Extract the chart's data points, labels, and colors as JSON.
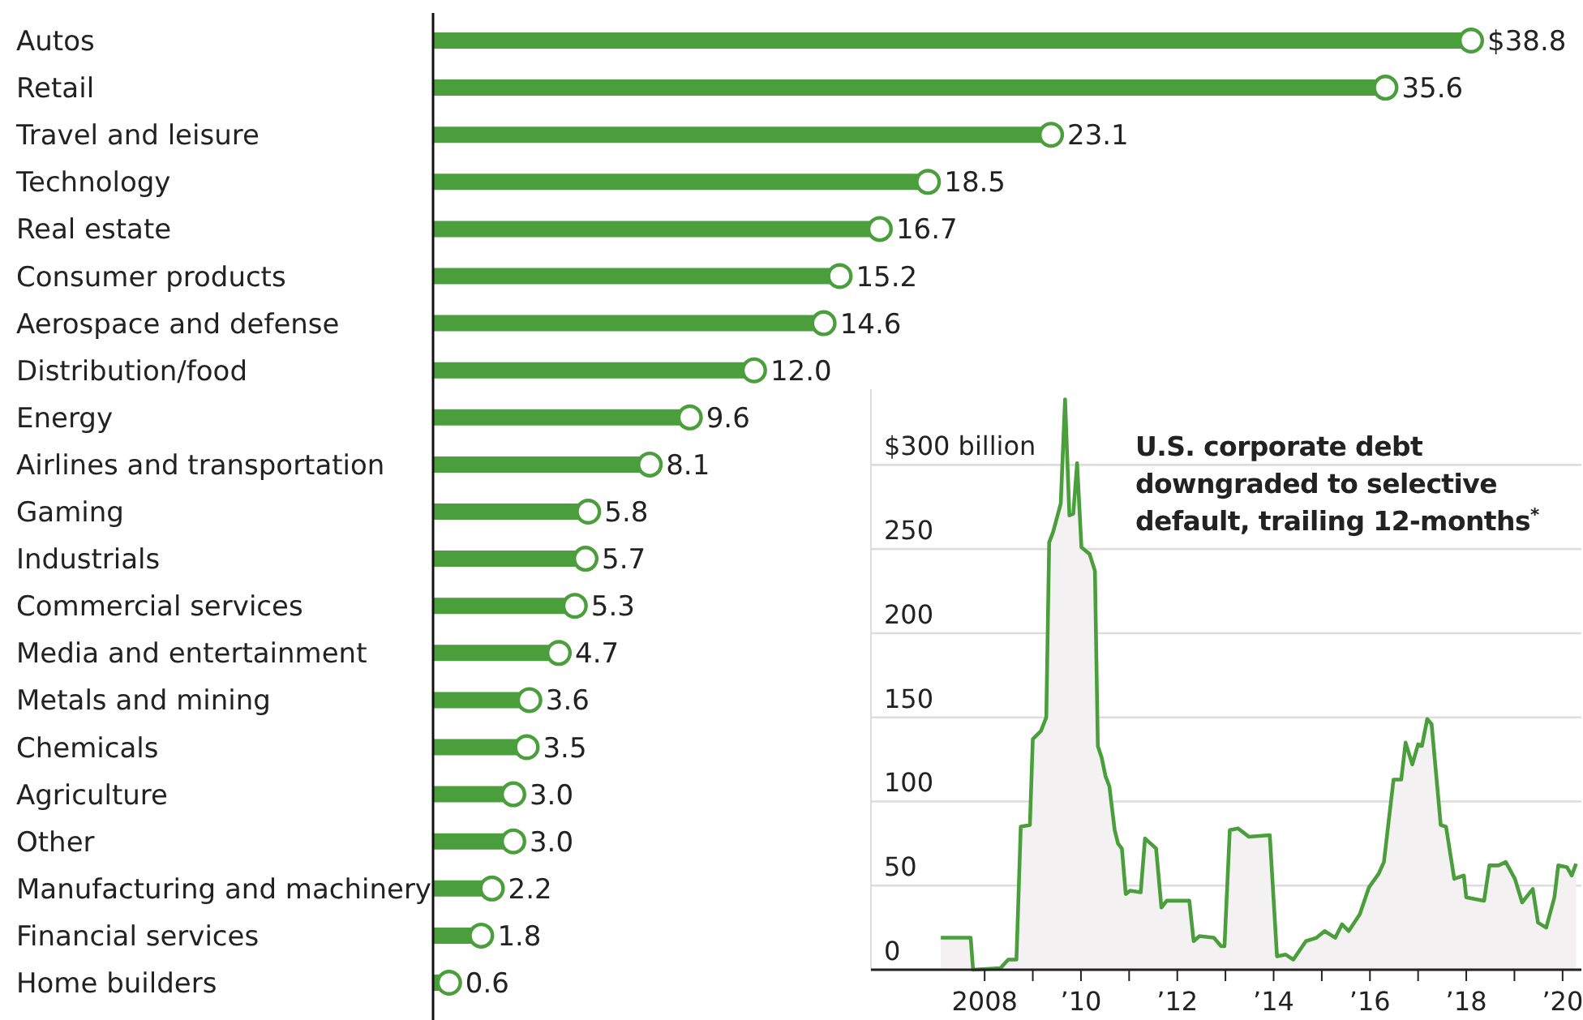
{
  "chart_data": [
    {
      "type": "lollipop",
      "orientation": "horizontal",
      "marker": "circle",
      "color": "#4a9e3c",
      "categories": [
        "Autos",
        "Retail",
        "Travel and leisure",
        "Technology",
        "Real estate",
        "Consumer products",
        "Aerospace and defense",
        "Distribution/food",
        "Energy",
        "Airlines and transportation",
        "Gaming",
        "Industrials",
        "Commercial services",
        "Media and entertainment",
        "Metals and mining",
        "Chemicals",
        "Agriculture",
        "Other",
        "Manufacturing and machinery",
        "Financial services",
        "Home builders"
      ],
      "values": [
        38.8,
        35.6,
        23.1,
        18.5,
        16.7,
        15.2,
        14.6,
        12.0,
        9.6,
        8.1,
        5.8,
        5.7,
        5.3,
        4.7,
        3.6,
        3.5,
        3.0,
        3.0,
        2.2,
        1.8,
        0.6
      ],
      "value_labels": [
        "$38.8",
        "35.6",
        "23.1",
        "18.5",
        "16.7",
        "15.2",
        "14.6",
        "12.0",
        "9.6",
        "8.1",
        "5.8",
        "5.7",
        "5.3",
        "4.7",
        "3.6",
        "3.5",
        "3.0",
        "3.0",
        "2.2",
        "1.8",
        "0.6"
      ]
    },
    {
      "type": "area",
      "title": "U.S. corporate debt downgraded to selective default, trailing 12-months$^{*}$",
      "grid": "y",
      "xlim": [
        2005.64,
        2020.39
      ],
      "ylim": [
        0,
        345
      ],
      "xticks": [
        2008,
        {
          "value": 2009,
          "label": null
        },
        {
          "value": 2010,
          "label": "’10"
        },
        {
          "value": 2011,
          "label": null
        },
        {
          "value": 2012,
          "label": "’12"
        },
        {
          "value": 2013,
          "label": null
        },
        {
          "value": 2014,
          "label": "’14"
        },
        {
          "value": 2015,
          "label": null
        },
        {
          "value": 2016,
          "label": "’16"
        },
        {
          "value": 2017,
          "label": null
        },
        {
          "value": 2018,
          "label": "’18"
        },
        {
          "value": 2019,
          "label": null
        },
        {
          "value": 2020,
          "label": "’20"
        }
      ],
      "yticks": [
        0,
        50,
        100,
        150,
        200,
        250,
        {
          "value": 300,
          "label": "$300 billion"
        }
      ],
      "series": [
        {
          "color": "#4a9e3c",
          "x": [
            2007.09,
            2007.71,
            2007.76,
            2008.33,
            2008.49,
            2008.66,
            2008.75,
            2008.94,
            2009.0,
            2009.17,
            2009.28,
            2009.34,
            2009.42,
            2009.58,
            2009.67,
            2009.76,
            2009.84,
            2009.92,
            2010.01,
            2010.18,
            2010.29,
            2010.35,
            2010.43,
            2010.51,
            2010.59,
            2010.7,
            2010.77,
            2010.85,
            2010.93,
            2011.02,
            2011.24,
            2011.33,
            2011.56,
            2011.67,
            2011.78,
            2012.25,
            2012.34,
            2012.46,
            2012.76,
            2012.91,
            2012.98,
            2013.09,
            2013.26,
            2013.49,
            2013.92,
            2014.07,
            2014.25,
            2014.41,
            2014.67,
            2014.89,
            2015.06,
            2015.28,
            2015.42,
            2015.56,
            2015.79,
            2015.98,
            2016.18,
            2016.29,
            2016.49,
            2016.65,
            2016.74,
            2016.88,
            2017.0,
            2017.08,
            2017.19,
            2017.28,
            2017.47,
            2017.58,
            2017.75,
            2017.95,
            2018.0,
            2018.37,
            2018.48,
            2018.67,
            2018.82,
            2019.01,
            2019.16,
            2019.38,
            2019.49,
            2019.66,
            2019.83,
            2019.91,
            2020.09,
            2020.19,
            2020.28
          ],
          "values": [
            19,
            19,
            0,
            1,
            6,
            6,
            85,
            86,
            137,
            142,
            150,
            254,
            260,
            277,
            339,
            270,
            271,
            301,
            251,
            247,
            237,
            133,
            126,
            115,
            109,
            83,
            75,
            72,
            45,
            47,
            46,
            78,
            72,
            37,
            41,
            41,
            17,
            20,
            19,
            14,
            14,
            83,
            84,
            79,
            80,
            8,
            9,
            6,
            17,
            19,
            23,
            19,
            27,
            23,
            33,
            49,
            57,
            64,
            113,
            113,
            135,
            122,
            134,
            133,
            149,
            146,
            86,
            85,
            54,
            56,
            43,
            41,
            62,
            62,
            64,
            54,
            40,
            48,
            28,
            25,
            43,
            62,
            61,
            56,
            63
          ]
        }
      ]
    }
  ]
}
